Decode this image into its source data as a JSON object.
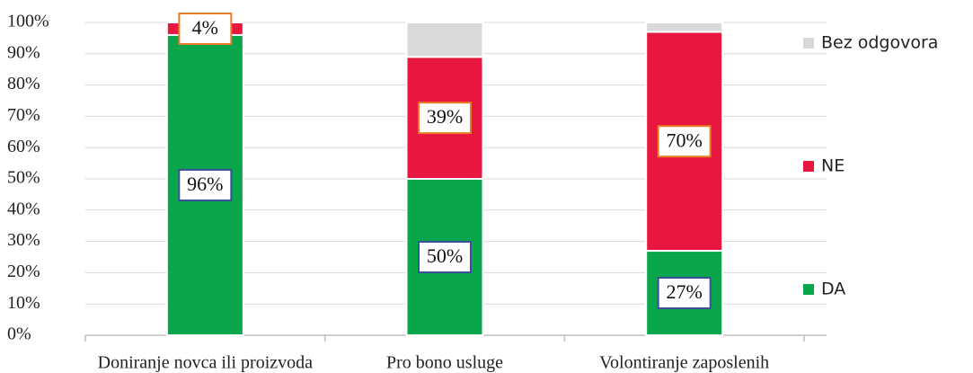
{
  "chart_data": {
    "type": "stacked_bar",
    "categories": [
      "Doniranje novca ili proizvoda",
      "Pro bono usluge",
      "Volontiranje zaposlenih"
    ],
    "series": [
      {
        "name": "DA",
        "color": "#0aa64b",
        "label_border_color": "#3a4f9e",
        "values": [
          96,
          50,
          27
        ],
        "value_labels": [
          "96%",
          "50%",
          "27%"
        ]
      },
      {
        "name": "NE",
        "color": "#e8173f",
        "label_border_color": "#ea7a25",
        "values": [
          4,
          39,
          70
        ],
        "value_labels": [
          "4%",
          "39%",
          "70%"
        ]
      },
      {
        "name": "Bez odgovora",
        "color": "#d9d9d9",
        "values": [
          0,
          11,
          3
        ]
      }
    ],
    "ylim": [
      0,
      100
    ],
    "yticks": [
      {
        "value": 0,
        "label": "0%"
      },
      {
        "value": 10,
        "label": "10%"
      },
      {
        "value": 20,
        "label": "20%"
      },
      {
        "value": 30,
        "label": "30%"
      },
      {
        "value": 40,
        "label": "40%"
      },
      {
        "value": 50,
        "label": "50%"
      },
      {
        "value": 60,
        "label": "60%"
      },
      {
        "value": 70,
        "label": "70%"
      },
      {
        "value": 80,
        "label": "80%"
      },
      {
        "value": 90,
        "label": "90%"
      },
      {
        "value": 100,
        "label": "100%"
      }
    ],
    "grid": true,
    "legend": "right"
  }
}
